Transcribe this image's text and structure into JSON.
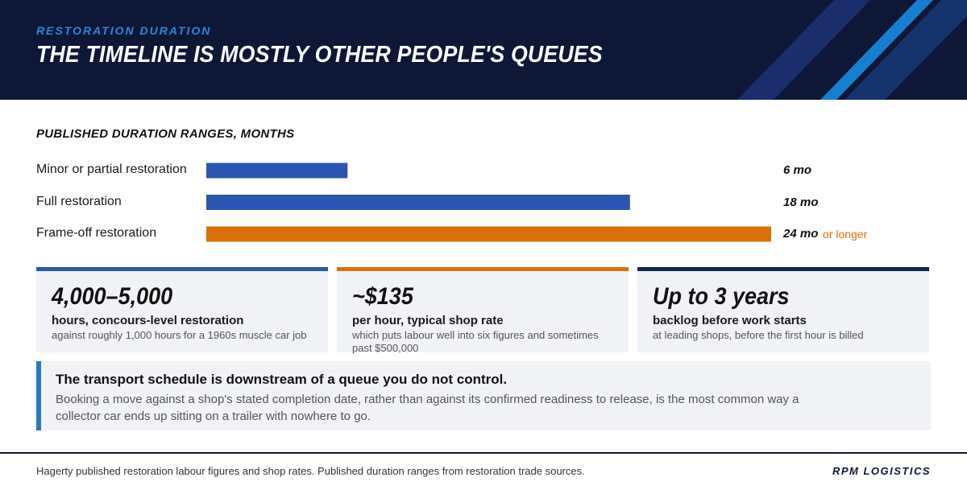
{
  "header": {
    "eyebrow": "RESTORATION DURATION",
    "headline": "THE TIMELINE IS MOSTLY OTHER PEOPLE'S QUEUES",
    "background_color": "#0f1736",
    "stripe_colors": [
      "#1a2e6e",
      "#1580d0",
      "#17336e"
    ]
  },
  "chart_data": {
    "type": "bar",
    "orientation": "horizontal",
    "title": "PUBLISHED DURATION RANGES, MONTHS",
    "categories": [
      "Minor or partial restoration",
      "Full restoration",
      "Frame-off restoration"
    ],
    "values": [
      6,
      18,
      24
    ],
    "value_labels": [
      "6 mo",
      "18 mo",
      "24 mo"
    ],
    "value_notes": [
      "",
      "",
      "or longer"
    ],
    "colors": [
      "#2b55b1",
      "#2b55b1",
      "#d9700a"
    ],
    "xlim": [
      0,
      24
    ],
    "grid": false
  },
  "cards": [
    {
      "big": "4,000–5,000",
      "sub": "hours, concours-level restoration",
      "small": "against roughly 1,000 hours for a 1960s muscle car job",
      "accent": "#2b55b1"
    },
    {
      "big": "~$135",
      "sub": "per hour, typical shop rate",
      "small": "which puts labour well into six figures and sometimes past $500,000",
      "accent": "#d9700a"
    },
    {
      "big": "Up to 3 years",
      "sub": "backlog before work starts",
      "small": "at leading shops, before the first hour is billed",
      "accent": "#14254f"
    }
  ],
  "callout": {
    "title": "The transport schedule is downstream of a queue you do not control.",
    "body": "Booking a move against a shop's stated completion date, rather than against its confirmed readiness to release, is the most common way a collector car ends up sitting on a trailer with nowhere to go.",
    "accent": "#2a7ab8"
  },
  "footer": {
    "source": "Hagerty published restoration labour figures and shop rates. Published duration ranges from restoration trade sources.",
    "brand": "RPM LOGISTICS"
  }
}
